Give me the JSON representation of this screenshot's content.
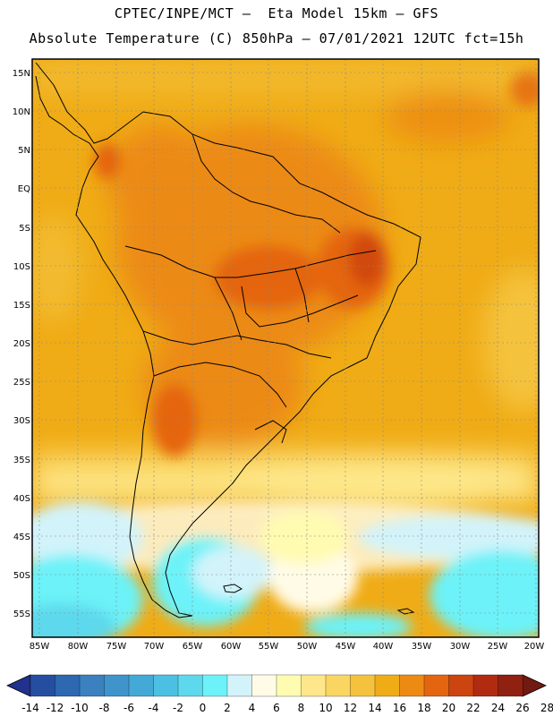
{
  "header": {
    "title": "CPTEC/INPE/MCT –  Eta Model 15km – GFS",
    "subtitle": "Absolute Temperature (C) 850hPa – 07/01/2021 12UTC fct=15h"
  },
  "axes": {
    "lat_labels": [
      "15N",
      "10N",
      "5N",
      "EQ",
      "5S",
      "10S",
      "15S",
      "20S",
      "25S",
      "30S",
      "35S",
      "40S",
      "45S",
      "50S",
      "55S"
    ],
    "lon_labels": [
      "85W",
      "80W",
      "75W",
      "70W",
      "65W",
      "60W",
      "55W",
      "50W",
      "45W",
      "40W",
      "35W",
      "30W",
      "25W",
      "20W"
    ]
  },
  "colorbar": {
    "labels": [
      "-14",
      "-12",
      "-10",
      "-8",
      "-6",
      "-4",
      "-2",
      "0",
      "2",
      "4",
      "6",
      "8",
      "10",
      "12",
      "14",
      "16",
      "18",
      "20",
      "22",
      "24",
      "26",
      "28"
    ],
    "colors": [
      "#22318c",
      "#254ea0",
      "#2d68b0",
      "#3b80bf",
      "#3e94cb",
      "#43a9d7",
      "#4cc0e2",
      "#5dd8ec",
      "#6cf2f8",
      "#d2f3fa",
      "#fffbe6",
      "#fffbb0",
      "#fde78a",
      "#fad561",
      "#f4c23c",
      "#f0ac16",
      "#ec8a12",
      "#e46510",
      "#cc4410",
      "#b12b10",
      "#902010",
      "#701a12"
    ]
  }
}
